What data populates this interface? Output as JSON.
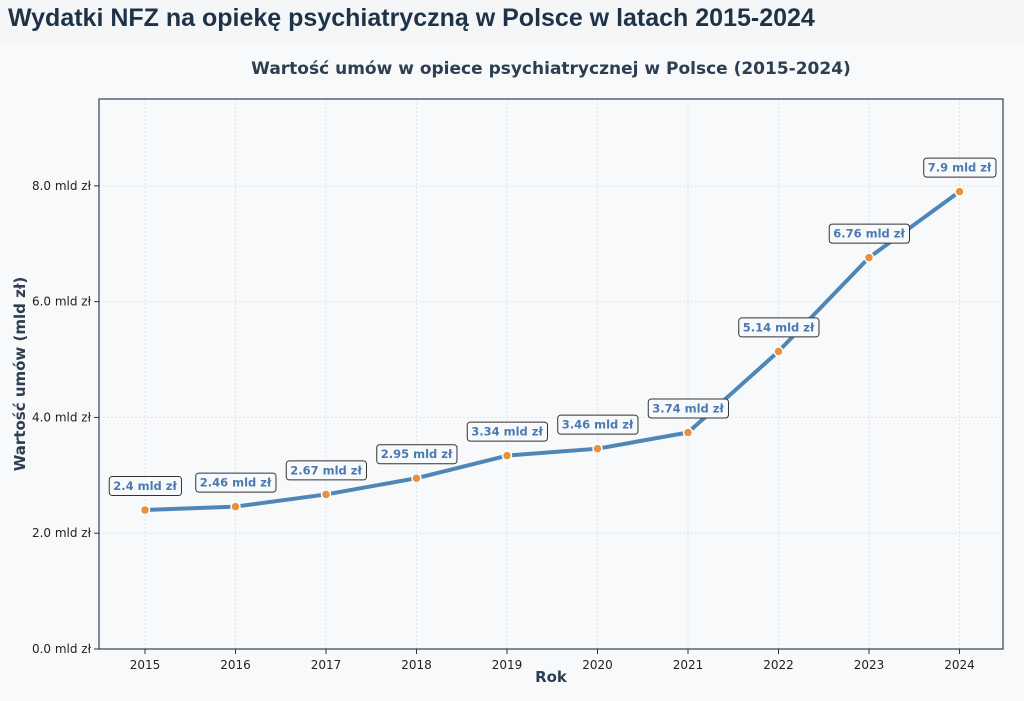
{
  "page": {
    "title": "Wydatki NFZ na opiekę psychiatryczną w Polsce w latach 2015-2024"
  },
  "chart_data": {
    "type": "line",
    "title": "Wartość umów w opiece psychiatrycznej w Polsce (2015-2024)",
    "xlabel": "Rok",
    "ylabel": "Wartość umów (mld zł)",
    "x": [
      "2015",
      "2016",
      "2017",
      "2018",
      "2019",
      "2020",
      "2021",
      "2022",
      "2023",
      "2024"
    ],
    "series": [
      {
        "values": [
          2.4,
          2.46,
          2.67,
          2.95,
          3.34,
          3.46,
          3.74,
          5.14,
          6.76,
          7.9
        ]
      }
    ],
    "data_labels": [
      "2.4 mld zł",
      "2.46 mld zł",
      "2.67 mld zł",
      "2.95 mld zł",
      "3.34 mld zł",
      "3.46 mld zł",
      "3.74 mld zł",
      "5.14 mld zł",
      "6.76 mld zł",
      "7.9 mld zł"
    ],
    "yticks": [
      0,
      2,
      4,
      6,
      8
    ],
    "ytick_labels": [
      "0.0 mld zł",
      "2.0 mld zł",
      "4.0 mld zł",
      "6.0 mld zł",
      "8.0 mld zł"
    ],
    "ylim": [
      0,
      9.5
    ],
    "grid": true,
    "legend": "none",
    "colors": {
      "line": "#4f86b8",
      "marker": "#e8913a",
      "label_text": "#4a7ab0",
      "frame": "#3c4e62"
    }
  }
}
